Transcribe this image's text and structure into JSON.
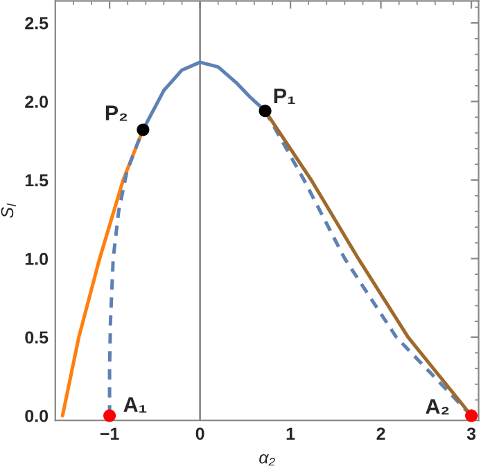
{
  "chart_data": {
    "type": "line",
    "xlabel": "α₂",
    "ylabel": "S$_{l}$",
    "xlim": [
      -1.6,
      3.08
    ],
    "ylim": [
      -0.03,
      2.64
    ],
    "xticks": [
      {
        "value": -1,
        "label": "−1"
      },
      0,
      1,
      2,
      3
    ],
    "yticks": [
      {
        "value": 0,
        "label": "0.0"
      },
      0.5,
      {
        "value": 1,
        "label": "1.0"
      },
      1.5,
      {
        "value": 2,
        "label": "2.0"
      },
      2.5
    ],
    "grid": false,
    "legend": false,
    "ref_lines": [
      {
        "axis": "x",
        "value": 0,
        "color": "#7f7f7f"
      }
    ],
    "series": [
      {
        "color": "#ff7f0e",
        "line_style": "solid",
        "x": [
          -1.52,
          -1.34,
          -1.11,
          -0.98,
          -0.85,
          -0.63
        ],
        "values": [
          0,
          0.5,
          1.0,
          1.25,
          1.5,
          1.82
        ]
      },
      {
        "color": "#5e81b5",
        "line_style": "dashed",
        "x": [
          -1.0,
          -1.0,
          -0.99,
          -0.96,
          -0.9,
          -0.81,
          -0.7,
          -0.63
        ],
        "values": [
          0,
          0.3,
          0.6,
          1.0,
          1.3,
          1.55,
          1.72,
          1.82
        ]
      },
      {
        "color": "#5e81b5",
        "line_style": "solid",
        "x": [
          -0.63,
          -0.4,
          -0.2,
          0,
          0.2,
          0.4,
          0.55,
          0.72
        ],
        "values": [
          1.82,
          2.07,
          2.2,
          2.25,
          2.22,
          2.12,
          2.03,
          1.94
        ]
      },
      {
        "color": "#5e81b5",
        "line_style": "dashed",
        "x": [
          0.72,
          1.15,
          1.6,
          2.17,
          3.0
        ],
        "values": [
          1.94,
          1.5,
          1.0,
          0.5,
          0
        ]
      },
      {
        "color": "#a0692c",
        "line_style": "solid",
        "x": [
          0.72,
          1.23,
          1.75,
          2.3,
          3.0
        ],
        "values": [
          1.94,
          1.5,
          1.0,
          0.5,
          0
        ]
      },
      {
        "type": "scatter",
        "marker": "circle",
        "color": "#000000",
        "x": [
          -0.63,
          0.72
        ],
        "values": [
          1.82,
          1.94
        ]
      },
      {
        "type": "scatter",
        "marker": "circle",
        "color": "#ff0000",
        "x": [
          -1.0,
          3.0
        ],
        "values": [
          0,
          0
        ]
      }
    ],
    "annotations": [
      {
        "text": "P₂",
        "x": -0.63,
        "y": 1.82
      },
      {
        "text": "P₁",
        "x": 0.72,
        "y": 1.94
      },
      {
        "text": "A₁",
        "x": -1.0,
        "y": 0
      },
      {
        "text": "A₂",
        "x": 3.0,
        "y": 0
      }
    ]
  }
}
